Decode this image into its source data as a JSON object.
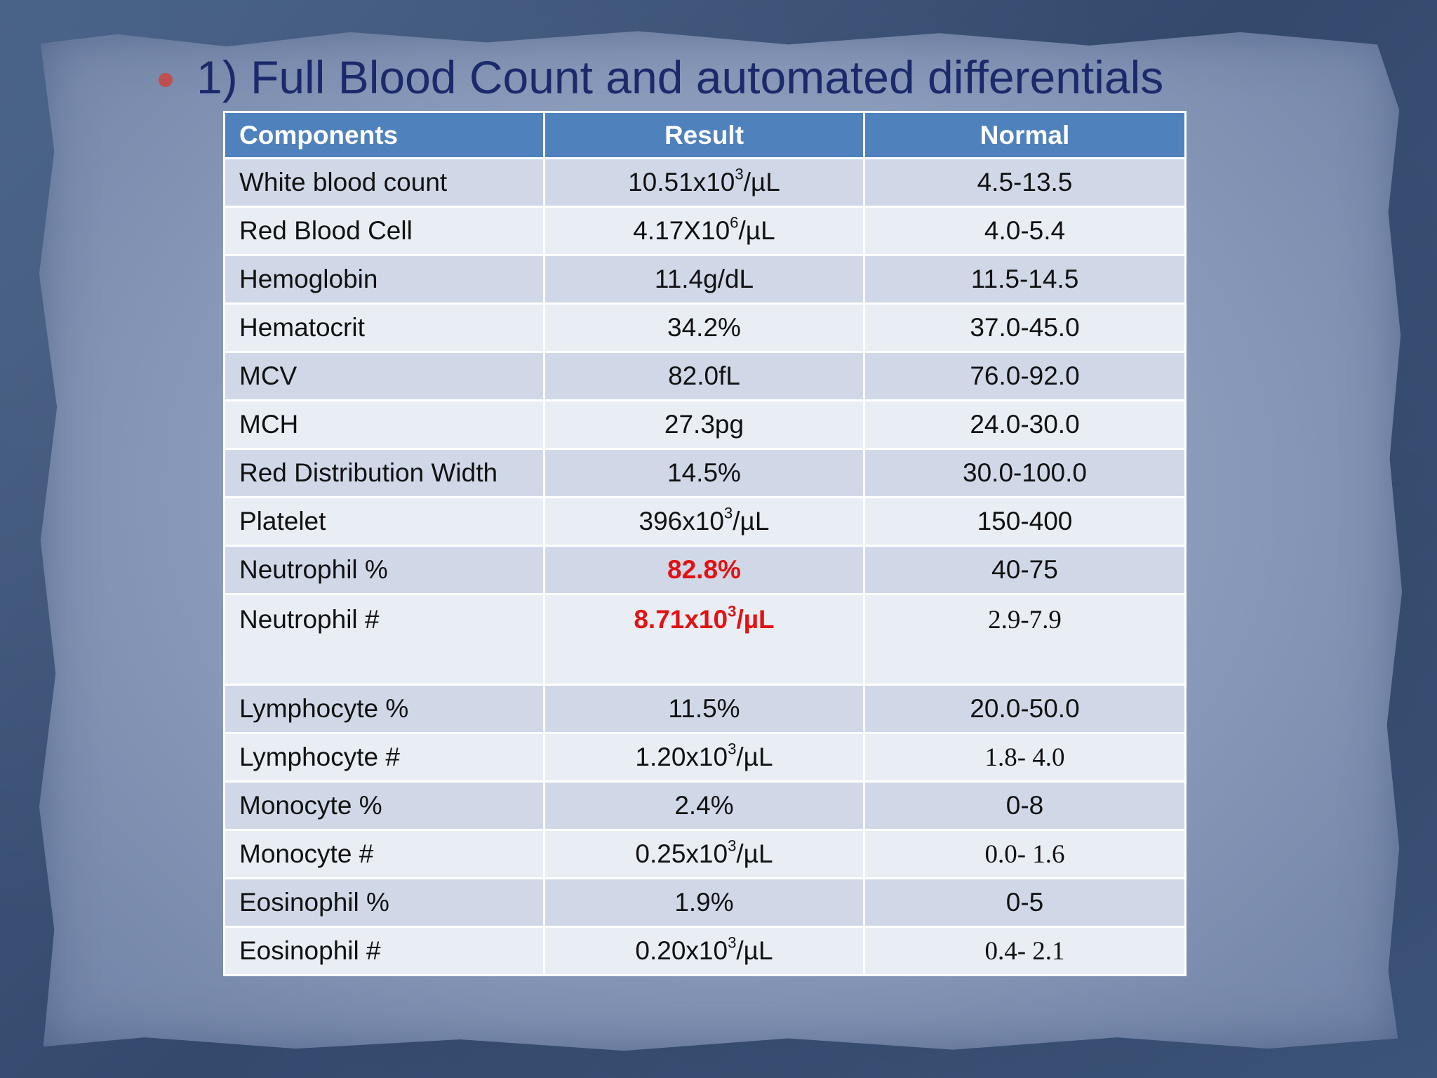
{
  "slide": {
    "title": "1) Full Blood Count and automated differentials",
    "accent_color": "#c0504d",
    "title_color": "#1a2a6b",
    "header_color": "#4f81bd",
    "flag_color": "#e31212"
  },
  "table": {
    "headers": {
      "component": "Components",
      "result": "Result",
      "normal": "Normal"
    },
    "rows": [
      {
        "component": "White blood count",
        "result_pre": "10.51x10",
        "result_exp": "3",
        "result_post": "/µL",
        "normal": "4.5-13.5"
      },
      {
        "component": "Red Blood Cell",
        "result_pre": "4.17X10",
        "result_exp": "6",
        "result_post": "/µL",
        "normal": "4.0-5.4"
      },
      {
        "component": "Hemoglobin",
        "result_pre": "11.4g/dL",
        "result_exp": "",
        "result_post": "",
        "normal": "11.5-14.5"
      },
      {
        "component": "Hematocrit",
        "result_pre": "34.2%",
        "result_exp": "",
        "result_post": "",
        "normal": "37.0-45.0"
      },
      {
        "component": "MCV",
        "result_pre": "82.0fL",
        "result_exp": "",
        "result_post": "",
        "normal": "76.0-92.0"
      },
      {
        "component": "MCH",
        "result_pre": "27.3pg",
        "result_exp": "",
        "result_post": "",
        "normal": "24.0-30.0"
      },
      {
        "component": "Red Distribution Width",
        "result_pre": "14.5%",
        "result_exp": "",
        "result_post": "",
        "normal": "30.0-100.0"
      },
      {
        "component": "Platelet",
        "result_pre": "396x10",
        "result_exp": "3",
        "result_post": "/µL",
        "normal": "150-400"
      },
      {
        "component": "Neutrophil %",
        "result_pre": "82.8%",
        "result_exp": "",
        "result_post": "",
        "normal": "40-75",
        "flagged": true
      },
      {
        "component": "Neutrophil #",
        "result_pre": "8.71x10",
        "result_exp": "3",
        "result_post": "/µL",
        "normal": "2.9-7.9",
        "flagged": true
      },
      {
        "component": "Lymphocyte %",
        "result_pre": "11.5%",
        "result_exp": "",
        "result_post": "",
        "normal": "20.0-50.0"
      },
      {
        "component": "Lymphocyte #",
        "result_pre": "1.20x10",
        "result_exp": "3",
        "result_post": "/µL",
        "normal": "1.8- 4.0"
      },
      {
        "component": "Monocyte %",
        "result_pre": "2.4%",
        "result_exp": "",
        "result_post": "",
        "normal": "0-8"
      },
      {
        "component": "Monocyte #",
        "result_pre": "0.25x10",
        "result_exp": "3",
        "result_post": "/µL",
        "normal": "0.0- 1.6"
      },
      {
        "component": "Eosinophil %",
        "result_pre": "1.9%",
        "result_exp": "",
        "result_post": "",
        "normal": "0-5"
      },
      {
        "component": "Eosinophil #",
        "result_pre": "0.20x10",
        "result_exp": "3",
        "result_post": "/µL",
        "normal": "0.4- 2.1"
      }
    ]
  }
}
